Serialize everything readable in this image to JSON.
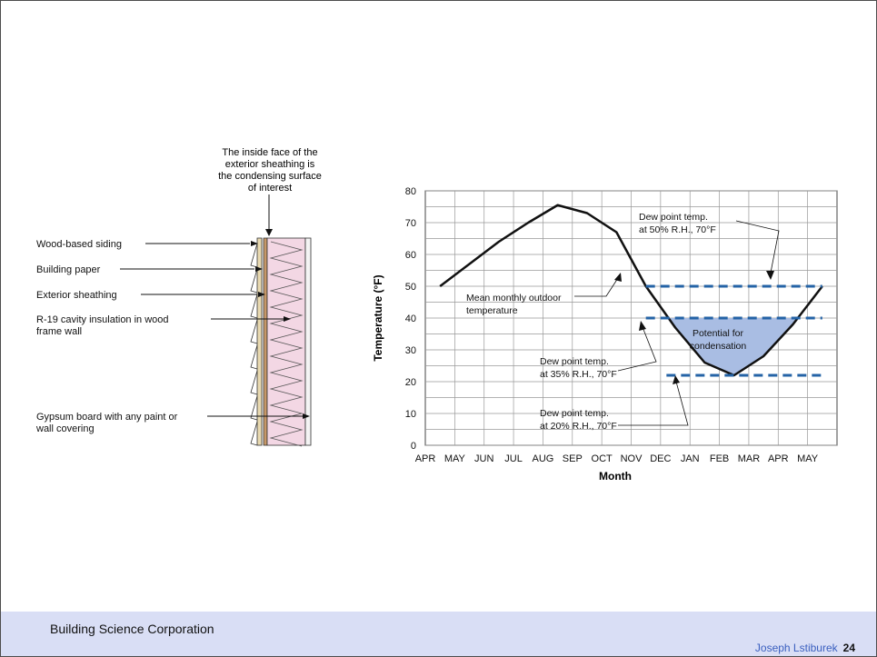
{
  "diagram": {
    "top_label_lines": [
      "The inside face of the",
      "exterior sheathing is",
      "the condensing surface",
      "of interest"
    ],
    "labels": [
      {
        "lines": [
          "Wood-based siding"
        ]
      },
      {
        "lines": [
          "Building paper"
        ]
      },
      {
        "lines": [
          "Exterior sheathing"
        ]
      },
      {
        "lines": [
          "R-19 cavity insulation in wood",
          "frame wall"
        ]
      },
      {
        "lines": [
          "Gypsum board with any paint or",
          "wall covering"
        ]
      }
    ]
  },
  "chart_data": {
    "type": "line",
    "xlabel": "Month",
    "ylabel": "Temperature (°F)",
    "ylim": [
      0,
      80
    ],
    "yticks": [
      0,
      10,
      20,
      30,
      40,
      50,
      60,
      70,
      80
    ],
    "categories": [
      "APR",
      "MAY",
      "JUN",
      "JUL",
      "AUG",
      "SEP",
      "OCT",
      "NOV",
      "DEC",
      "JAN",
      "FEB",
      "MAR",
      "APR",
      "MAY"
    ],
    "grid": true,
    "series": [
      {
        "key": "mean",
        "points": [
          [
            0.5,
            50
          ],
          [
            1.5,
            57
          ],
          [
            2.5,
            64
          ],
          [
            3.5,
            70
          ],
          [
            4.5,
            75.5
          ],
          [
            5.5,
            73
          ],
          [
            6.5,
            67
          ],
          [
            7.5,
            50
          ],
          [
            8.5,
            37
          ],
          [
            9.5,
            26
          ],
          [
            10.5,
            22
          ],
          [
            11.5,
            28
          ],
          [
            12.5,
            38
          ],
          [
            13.5,
            50
          ]
        ],
        "color": "#111111"
      },
      {
        "key": "dew50",
        "value": 50,
        "x_range": [
          7.5,
          13.5
        ],
        "color": "#2463a6",
        "dashed": true
      },
      {
        "key": "dew35",
        "value": 40,
        "x_range": [
          7.5,
          13.5
        ],
        "color": "#2463a6",
        "dashed": true
      },
      {
        "key": "dew20",
        "value": 22,
        "x_range": [
          8.2,
          13.5
        ],
        "color": "#2463a6",
        "dashed": true
      }
    ],
    "condensation_fill": "#a9bde3",
    "annotations": [
      {
        "lines": [
          "Dew point temp.",
          "at 50% R.H., 70°F"
        ]
      },
      {
        "lines": [
          "Mean monthly outdoor",
          "temperature"
        ]
      },
      {
        "lines": [
          "Potential for",
          "condensation"
        ]
      },
      {
        "lines": [
          "Dew point temp.",
          "at 35% R.H., 70°F"
        ]
      },
      {
        "lines": [
          "Dew point temp.",
          "at 20% R.H., 70°F"
        ]
      }
    ]
  },
  "footer": {
    "org": "Building Science Corporation",
    "author": "Joseph Lstiburek",
    "page": "24"
  }
}
